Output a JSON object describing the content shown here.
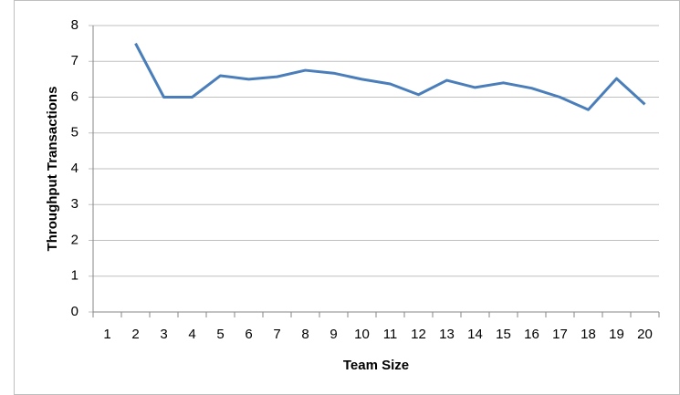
{
  "chart_data": {
    "type": "line",
    "xlabel": "Team Size",
    "ylabel": "Throughput Transactions",
    "categories": [
      "1",
      "2",
      "3",
      "4",
      "5",
      "6",
      "7",
      "8",
      "9",
      "10",
      "11",
      "12",
      "13",
      "14",
      "15",
      "16",
      "17",
      "18",
      "19",
      "20"
    ],
    "series": [
      {
        "color": "#4a7ebb",
        "values": [
          null,
          7.5,
          6.0,
          6.0,
          6.6,
          6.5,
          6.57,
          6.75,
          6.67,
          6.5,
          6.37,
          6.07,
          6.47,
          6.27,
          6.4,
          6.25,
          6.0,
          5.65,
          6.52,
          5.8
        ]
      }
    ],
    "ylim": [
      0,
      8
    ],
    "yticks": [
      0,
      1,
      2,
      3,
      4,
      5,
      6,
      7,
      8
    ],
    "grid": true
  }
}
